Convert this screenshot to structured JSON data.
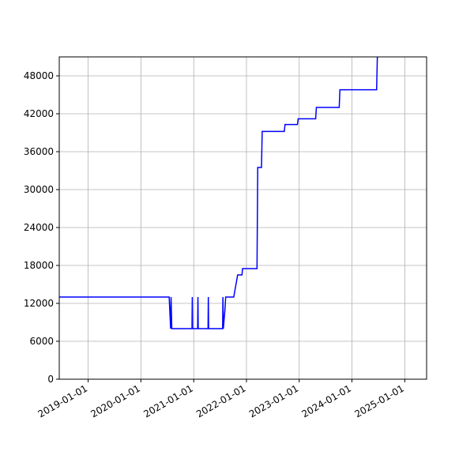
{
  "chart_data": {
    "type": "line",
    "title": "",
    "xlabel": "",
    "ylabel": "",
    "x_axis_type": "date",
    "xlim": [
      "2018-06-15",
      "2025-06-01"
    ],
    "ylim": [
      0,
      51000
    ],
    "x_ticks": [
      "2019-01-01",
      "2020-01-01",
      "2021-01-01",
      "2022-01-01",
      "2023-01-01",
      "2024-01-01",
      "2025-01-01"
    ],
    "y_ticks": [
      0,
      6000,
      12000,
      18000,
      24000,
      30000,
      36000,
      42000,
      48000
    ],
    "grid": true,
    "series_color": "#0000ff",
    "series": [
      {
        "x": [
          "2018-06-15",
          "2020-07-15",
          "2020-07-25",
          "2020-07-28",
          "2020-08-02",
          "2020-08-05",
          "2020-12-20",
          "2020-12-22",
          "2020-12-24",
          "2021-01-28",
          "2021-01-30",
          "2021-02-01",
          "2021-04-10",
          "2021-04-12",
          "2021-04-14",
          "2021-07-20",
          "2021-07-22",
          "2021-07-25",
          "2021-08-05",
          "2021-08-10",
          "2021-10-05",
          "2021-11-01",
          "2021-12-01",
          "2021-12-05",
          "2022-03-15",
          "2022-03-20",
          "2022-04-15",
          "2022-04-20",
          "2022-09-20",
          "2022-09-25",
          "2022-12-20",
          "2022-12-25",
          "2023-04-25",
          "2023-04-30",
          "2023-10-05",
          "2023-10-10",
          "2024-06-20",
          "2024-06-25"
        ],
        "y": [
          13000,
          13000,
          8000,
          13000,
          8000,
          8000,
          8000,
          13000,
          8000,
          8000,
          13000,
          8000,
          8000,
          13000,
          8000,
          8000,
          13000,
          8000,
          11000,
          13000,
          13000,
          16500,
          16500,
          17500,
          17500,
          33500,
          33500,
          39200,
          39200,
          40300,
          40300,
          41200,
          41200,
          43000,
          43000,
          45800,
          45800,
          51000
        ]
      }
    ]
  }
}
